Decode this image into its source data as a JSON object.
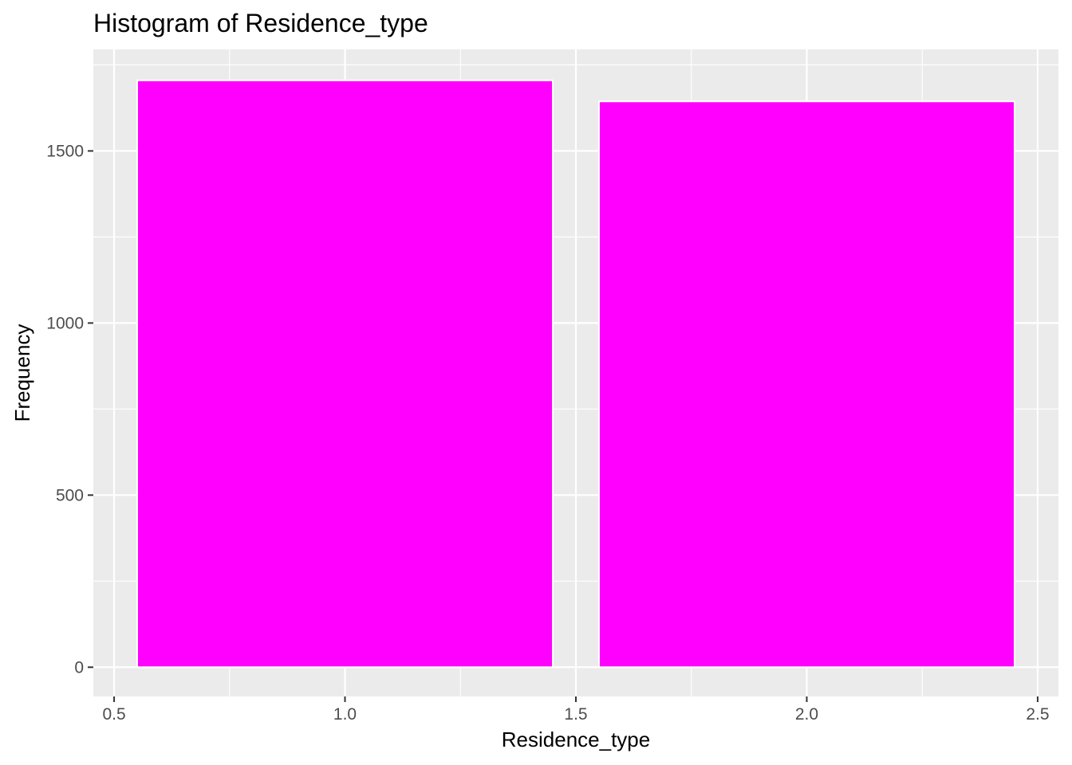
{
  "chart_data": {
    "type": "bar",
    "title": "Histogram of Residence_type",
    "xlabel": "Residence_type",
    "ylabel": "Frequency",
    "xlim": [
      0.455,
      2.545
    ],
    "ylim": [
      -85,
      1795
    ],
    "xticks": [
      0.5,
      1.0,
      1.5,
      2.0,
      2.5
    ],
    "xtick_labels": [
      "0.5",
      "1.0",
      "1.5",
      "2.0",
      "2.5"
    ],
    "yticks": [
      0,
      500,
      1000,
      1500
    ],
    "ytick_labels": [
      "0",
      "500",
      "1000",
      "1500"
    ],
    "categories": [
      "1",
      "2"
    ],
    "bins": [
      {
        "x0": 0.55,
        "x1": 1.45,
        "value": 1705
      },
      {
        "x0": 1.55,
        "x1": 2.45,
        "value": 1644
      }
    ],
    "values": [
      1705,
      1644
    ],
    "bar_color": "#FF00FF",
    "bar_outline_color": "#FFFFFF",
    "panel_background": "#EBEBEB",
    "grid": true,
    "legend": "none"
  }
}
